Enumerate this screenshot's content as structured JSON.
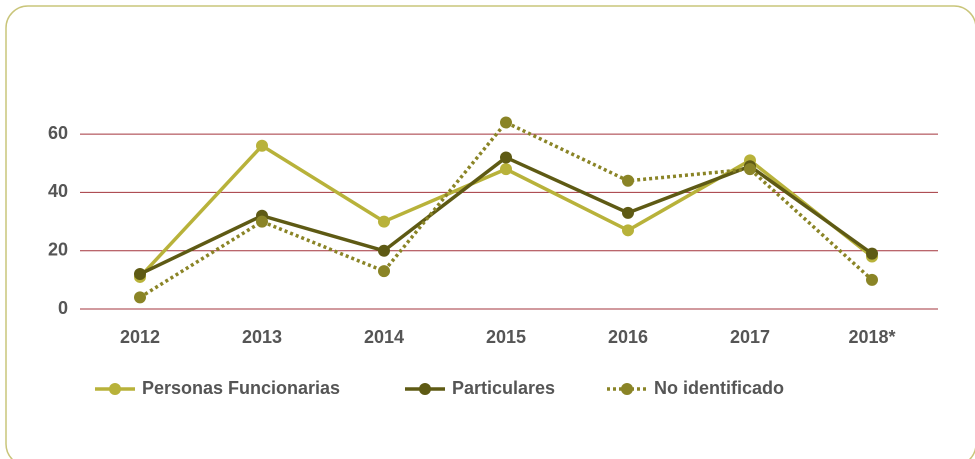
{
  "chart_data": {
    "type": "line",
    "categories": [
      "2012",
      "2013",
      "2014",
      "2015",
      "2016",
      "2017",
      "2018*"
    ],
    "series": [
      {
        "name": "Personas Funcionarias",
        "color": "#b8b23a",
        "values": [
          11,
          56,
          30,
          48,
          27,
          51,
          18
        ]
      },
      {
        "name": "Particulares",
        "color": "#5e5a14",
        "values": [
          12,
          32,
          20,
          52,
          33,
          49,
          19
        ]
      },
      {
        "name": "No identificado",
        "color": "#8a8426",
        "dashed": true,
        "values": [
          4,
          30,
          13,
          64,
          44,
          48,
          10
        ]
      }
    ],
    "ylim": [
      0,
      70
    ],
    "yticks": [
      0,
      20,
      40,
      60
    ],
    "grid": true,
    "grid_color": "#a3343c",
    "legend": "bottom"
  }
}
